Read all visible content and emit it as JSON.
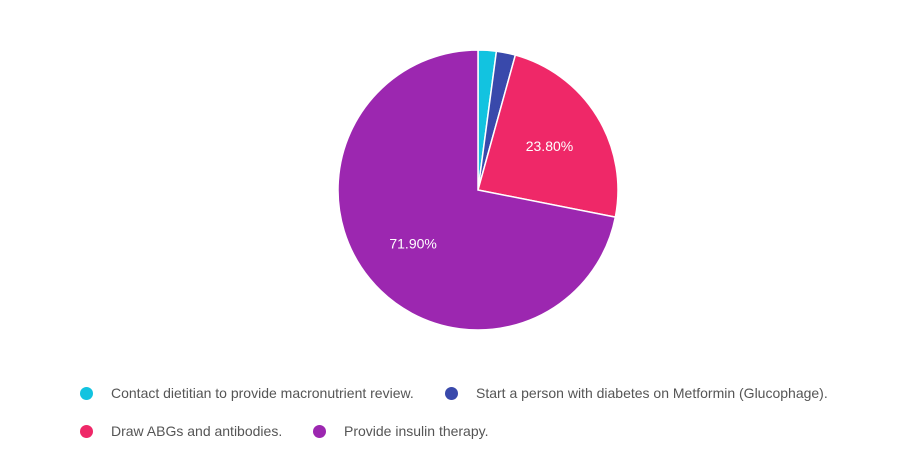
{
  "chart_data": {
    "type": "pie",
    "slices": [
      {
        "label": "Contact dietitian to provide macronutrient review.",
        "value": 2.1,
        "color": "#12c3e0",
        "display": ""
      },
      {
        "label": "Start a person with diabetes on Metformin (Glucophage).",
        "value": 2.2,
        "color": "#3949ab",
        "display": ""
      },
      {
        "label": "Draw ABGs and antibodies.",
        "value": 23.8,
        "color": "#ef2868",
        "display": "23.80%"
      },
      {
        "label": "Provide insulin therapy.",
        "value": 71.9,
        "color": "#9c27b0",
        "display": "71.90%"
      }
    ],
    "legend_position": "bottom"
  }
}
